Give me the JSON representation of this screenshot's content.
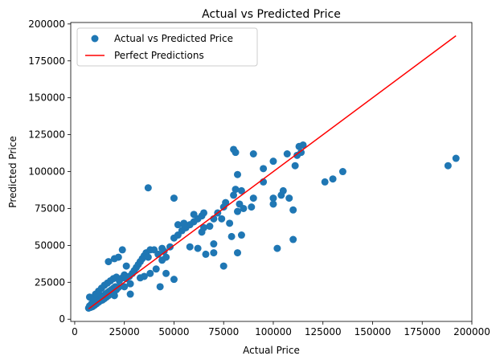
{
  "chart_data": {
    "type": "scatter",
    "title": "Actual vs Predicted Price",
    "xlabel": "Actual Price",
    "ylabel": "Predicted Price",
    "xlim": [
      -2000,
      200000
    ],
    "ylim": [
      -1500,
      201000
    ],
    "xticks": [
      0,
      25000,
      50000,
      75000,
      100000,
      125000,
      150000,
      175000,
      200000
    ],
    "xtick_labels": [
      "0",
      "25000",
      "50000",
      "75000",
      "100000",
      "125000",
      "150000",
      "175000",
      "200000"
    ],
    "yticks": [
      0,
      25000,
      50000,
      75000,
      100000,
      125000,
      150000,
      175000,
      200000
    ],
    "ytick_labels": [
      "0",
      "25000",
      "50000",
      "75000",
      "100000",
      "125000",
      "150000",
      "175000",
      "200000"
    ],
    "grid": false,
    "legend_position": "top-left",
    "series": [
      {
        "name": "Actual vs Predicted Price",
        "kind": "scatter",
        "color": "#1f77b4",
        "points": [
          [
            7000,
            7500
          ],
          [
            7500,
            9000
          ],
          [
            8000,
            8000
          ],
          [
            8500,
            10500
          ],
          [
            9000,
            8500
          ],
          [
            9500,
            11500
          ],
          [
            10000,
            9500
          ],
          [
            10500,
            12500
          ],
          [
            11000,
            10500
          ],
          [
            11500,
            13500
          ],
          [
            12000,
            11500
          ],
          [
            12500,
            14500
          ],
          [
            13000,
            12500
          ],
          [
            13500,
            15500
          ],
          [
            14000,
            13000
          ],
          [
            14500,
            16000
          ],
          [
            15000,
            14000
          ],
          [
            15500,
            17000
          ],
          [
            16000,
            15000
          ],
          [
            16500,
            18000
          ],
          [
            17000,
            16000
          ],
          [
            17500,
            19000
          ],
          [
            18000,
            17000
          ],
          [
            18500,
            20000
          ],
          [
            19000,
            18000
          ],
          [
            19500,
            21000
          ],
          [
            20000,
            19000
          ],
          [
            20500,
            22000
          ],
          [
            21000,
            20000
          ],
          [
            22000,
            21500
          ],
          [
            7500,
            15000
          ],
          [
            9000,
            14500
          ],
          [
            10500,
            17000
          ],
          [
            12000,
            19000
          ],
          [
            13500,
            21000
          ],
          [
            15000,
            23000
          ],
          [
            16500,
            24500
          ],
          [
            18000,
            26000
          ],
          [
            19500,
            27500
          ],
          [
            21000,
            28500
          ],
          [
            22500,
            26000
          ],
          [
            24000,
            28000
          ],
          [
            25000,
            30000
          ],
          [
            26000,
            27500
          ],
          [
            27500,
            29000
          ],
          [
            29000,
            31000
          ],
          [
            30000,
            33000
          ],
          [
            31000,
            35000
          ],
          [
            32000,
            37000
          ],
          [
            33000,
            39000
          ],
          [
            34000,
            41000
          ],
          [
            35000,
            43000
          ],
          [
            36000,
            45000
          ],
          [
            37000,
            42000
          ],
          [
            38000,
            47000
          ],
          [
            40000,
            47000
          ],
          [
            42000,
            44000
          ],
          [
            44000,
            48000
          ],
          [
            45000,
            46000
          ],
          [
            46000,
            42000
          ],
          [
            48000,
            49000
          ],
          [
            50000,
            55000
          ],
          [
            52000,
            57000
          ],
          [
            54000,
            60000
          ],
          [
            56000,
            62000
          ],
          [
            58000,
            64000
          ],
          [
            60000,
            66000
          ],
          [
            62000,
            68000
          ],
          [
            64000,
            70000
          ],
          [
            65000,
            72000
          ],
          [
            17000,
            39000
          ],
          [
            20000,
            41000
          ],
          [
            22000,
            42000
          ],
          [
            24000,
            47000
          ],
          [
            26000,
            36000
          ],
          [
            28000,
            17000
          ],
          [
            35000,
            29000
          ],
          [
            43000,
            22000
          ],
          [
            46000,
            31000
          ],
          [
            50000,
            27000
          ],
          [
            55000,
            64000
          ],
          [
            58000,
            49000
          ],
          [
            62000,
            48000
          ],
          [
            64000,
            59000
          ],
          [
            65000,
            62000
          ],
          [
            66000,
            44000
          ],
          [
            68000,
            63000
          ],
          [
            70000,
            68000
          ],
          [
            72000,
            72000
          ],
          [
            74000,
            68000
          ],
          [
            75000,
            76000
          ],
          [
            76000,
            79000
          ],
          [
            78000,
            65000
          ],
          [
            79000,
            56000
          ],
          [
            80000,
            84000
          ],
          [
            81000,
            88000
          ],
          [
            82000,
            73000
          ],
          [
            83000,
            78000
          ],
          [
            84000,
            87000
          ],
          [
            85000,
            75000
          ],
          [
            37000,
            89000
          ],
          [
            50000,
            82000
          ],
          [
            52000,
            64000
          ],
          [
            55000,
            65000
          ],
          [
            60000,
            71000
          ],
          [
            70000,
            45000
          ],
          [
            70000,
            51000
          ],
          [
            75000,
            36000
          ],
          [
            82000,
            45000
          ],
          [
            84000,
            57000
          ],
          [
            80000,
            115000
          ],
          [
            81000,
            113000
          ],
          [
            82000,
            98000
          ],
          [
            89000,
            76000
          ],
          [
            90000,
            82000
          ],
          [
            90000,
            112000
          ],
          [
            95000,
            102000
          ],
          [
            95000,
            93000
          ],
          [
            100000,
            107000
          ],
          [
            100000,
            78000
          ],
          [
            100000,
            82000
          ],
          [
            102000,
            48000
          ],
          [
            104000,
            84000
          ],
          [
            105000,
            87000
          ],
          [
            107000,
            112000
          ],
          [
            108000,
            82000
          ],
          [
            110000,
            54000
          ],
          [
            110000,
            74000
          ],
          [
            111000,
            104000
          ],
          [
            112000,
            111000
          ],
          [
            113000,
            117000
          ],
          [
            114000,
            113000
          ],
          [
            115000,
            118000
          ],
          [
            126000,
            93000
          ],
          [
            130000,
            95000
          ],
          [
            135000,
            100000
          ],
          [
            188000,
            104000
          ],
          [
            192000,
            109000
          ],
          [
            20000,
            16000
          ],
          [
            25000,
            22000
          ],
          [
            28000,
            24000
          ],
          [
            33000,
            28000
          ],
          [
            38000,
            31000
          ],
          [
            41000,
            34000
          ],
          [
            44000,
            40000
          ]
        ]
      },
      {
        "name": "Perfect Predictions",
        "kind": "line",
        "color": "#ff0000",
        "points": [
          [
            7000,
            7000
          ],
          [
            192000,
            192000
          ]
        ]
      }
    ]
  }
}
